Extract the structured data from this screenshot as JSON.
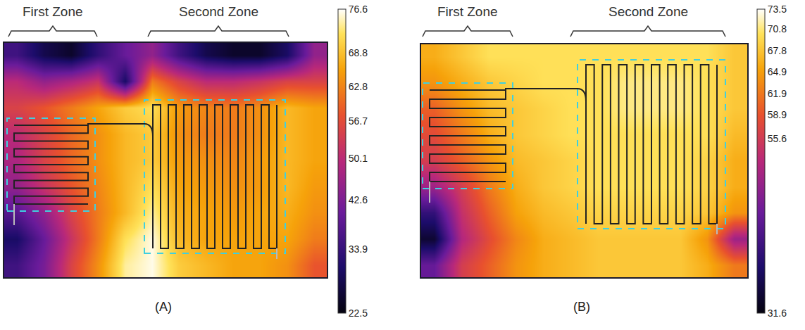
{
  "chart_data": [
    {
      "type": "heatmap",
      "title": "(A)",
      "annotations": [
        "First Zone",
        "Second Zone"
      ],
      "tick_labels": false,
      "colorbar_range": [
        22.5,
        76.6
      ],
      "colorbar_ticks": [
        22.5,
        33.9,
        42.6,
        50.1,
        56.7,
        62.8,
        68.8,
        76.6
      ],
      "cells": [
        [
          35,
          28,
          25,
          33,
          40,
          45,
          35,
          28,
          25,
          25,
          30,
          45
        ],
        [
          50,
          45,
          48,
          52,
          30,
          62,
          55,
          50,
          50,
          52,
          55,
          55
        ],
        [
          55,
          58,
          62,
          66,
          70,
          72,
          65,
          63,
          62,
          64,
          68,
          66
        ],
        [
          50,
          55,
          60,
          64,
          68,
          70,
          64,
          62,
          62,
          64,
          68,
          66
        ],
        [
          48,
          55,
          60,
          64,
          68,
          70,
          65,
          64,
          63,
          65,
          68,
          66
        ],
        [
          45,
          52,
          58,
          63,
          68,
          72,
          66,
          65,
          64,
          65,
          68,
          65
        ],
        [
          38,
          45,
          55,
          62,
          68,
          74,
          67,
          66,
          65,
          66,
          67,
          64
        ],
        [
          30,
          40,
          52,
          62,
          72,
          76,
          68,
          66,
          66,
          66,
          66,
          62
        ],
        [
          35,
          42,
          55,
          64,
          74,
          76,
          70,
          68,
          66,
          66,
          64,
          58
        ]
      ]
    },
    {
      "type": "heatmap",
      "title": "(B)",
      "annotations": [
        "First Zone",
        "Second Zone"
      ],
      "tick_labels": false,
      "colorbar_range": [
        31.6,
        73.5
      ],
      "colorbar_ticks": [
        31.6,
        55.6,
        58.9,
        61.9,
        64.9,
        67.8,
        70.8,
        73.5
      ],
      "cells": [
        [
          66,
          68,
          70,
          70,
          70,
          70,
          70,
          70,
          70,
          70,
          70,
          68
        ],
        [
          64,
          66,
          68,
          69,
          70,
          70,
          70,
          71,
          71,
          71,
          70,
          68
        ],
        [
          60,
          64,
          67,
          68,
          69,
          70,
          70,
          71,
          71,
          71,
          70,
          68
        ],
        [
          58,
          62,
          66,
          68,
          69,
          70,
          70,
          70,
          70,
          70,
          70,
          67
        ],
        [
          56,
          60,
          64,
          67,
          68,
          69,
          70,
          70,
          70,
          70,
          69,
          66
        ],
        [
          50,
          56,
          62,
          66,
          68,
          69,
          70,
          70,
          70,
          70,
          69,
          66
        ],
        [
          40,
          54,
          60,
          65,
          67,
          68,
          69,
          69,
          69,
          69,
          68,
          64
        ],
        [
          34,
          52,
          58,
          63,
          66,
          67,
          68,
          68,
          68,
          68,
          64,
          50
        ],
        [
          45,
          56,
          60,
          64,
          66,
          67,
          68,
          68,
          68,
          68,
          66,
          62
        ]
      ]
    }
  ]
}
